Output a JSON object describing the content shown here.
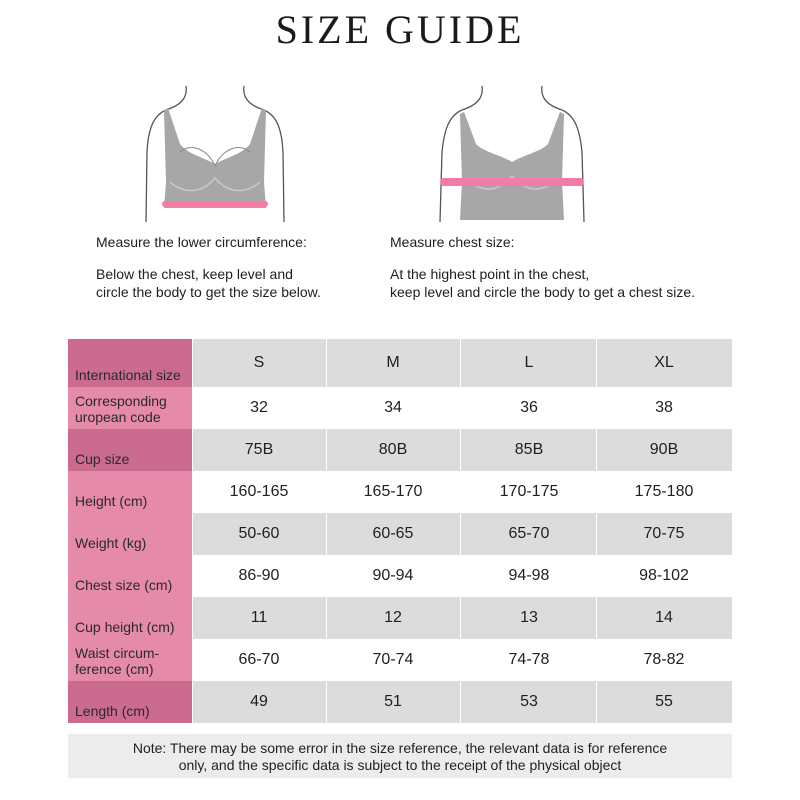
{
  "title": "SIZE GUIDE",
  "left_caption": {
    "heading": "Measure the lower circumference:",
    "line1": "Below the chest, keep level and",
    "line2": "circle the body to get the size below."
  },
  "right_caption": {
    "heading": "Measure chest size:",
    "line1": "At the highest point in the chest,",
    "line2": "keep level and circle the body to get a chest size."
  },
  "colors": {
    "header_pink": "#e58aa9",
    "header_dark_pink": "#cc6b90",
    "row_gray": "#dcdcdc",
    "row_white": "#ffffff",
    "band": "#f27ba7",
    "bra": "#a7a7a7"
  },
  "table": {
    "rows": [
      {
        "label": "International size",
        "values": [
          "S",
          "M",
          "L",
          "XL"
        ]
      },
      {
        "label": "Corresponding uropean code",
        "values": [
          "32",
          "34",
          "36",
          "38"
        ]
      },
      {
        "label": "Cup size",
        "values": [
          "75B",
          "80B",
          "85B",
          "90B"
        ]
      },
      {
        "label": "Height (cm)",
        "values": [
          "160-165",
          "165-170",
          "170-175",
          "175-180"
        ]
      },
      {
        "label": "Weight (kg)",
        "values": [
          "50-60",
          "60-65",
          "65-70",
          "70-75"
        ]
      },
      {
        "label": "Chest size (cm)",
        "values": [
          "86-90",
          "90-94",
          "94-98",
          "98-102"
        ]
      },
      {
        "label": "Cup height (cm)",
        "values": [
          "11",
          "12",
          "13",
          "14"
        ]
      },
      {
        "label": "Waist circum-ference (cm)",
        "values": [
          "66-70",
          "70-74",
          "74-78",
          "78-82"
        ]
      },
      {
        "label": "Length (cm)",
        "values": [
          "49",
          "51",
          "53",
          "55"
        ]
      }
    ]
  },
  "note": {
    "line1": "Note: There may be some error in the size reference, the relevant data is for reference",
    "line2": "only, and the specific data is subject to the receipt of the physical object"
  }
}
